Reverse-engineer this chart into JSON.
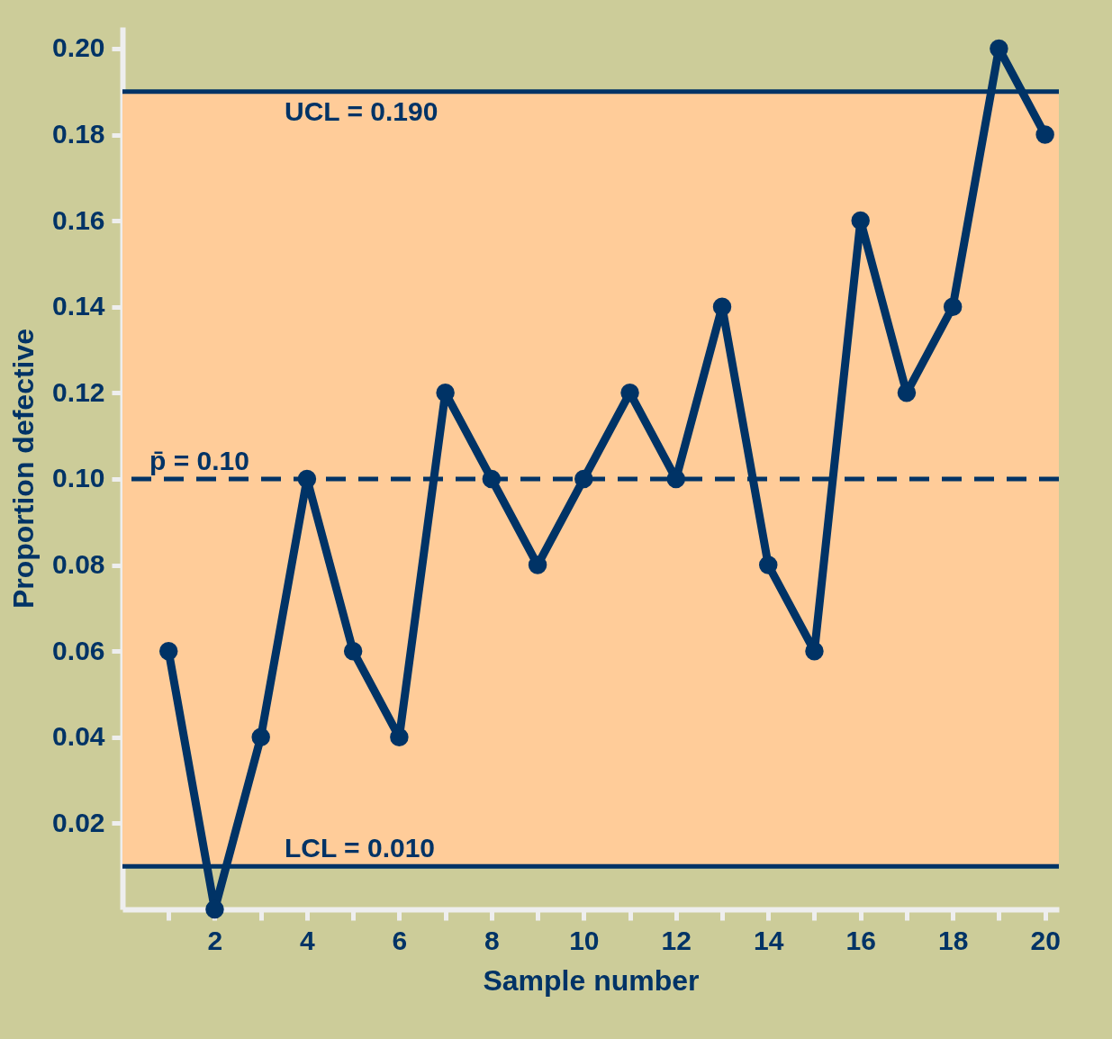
{
  "chart_data": {
    "type": "line",
    "xlabel": "Sample number",
    "ylabel": "Proportion defective",
    "x": [
      1,
      2,
      3,
      4,
      5,
      6,
      7,
      8,
      9,
      10,
      11,
      12,
      13,
      14,
      15,
      16,
      17,
      18,
      19,
      20
    ],
    "series": [
      {
        "color": "#003366",
        "values": [
          0.06,
          0.0,
          0.04,
          0.1,
          0.06,
          0.04,
          0.12,
          0.1,
          0.08,
          0.1,
          0.12,
          0.1,
          0.14,
          0.08,
          0.06,
          0.16,
          0.12,
          0.14,
          0.2,
          0.18
        ]
      }
    ],
    "xlim": [
      0,
      20.3
    ],
    "xticks": [
      {
        "value": 1,
        "label": null
      },
      2,
      {
        "value": 3,
        "label": null
      },
      4,
      {
        "value": 5,
        "label": null
      },
      6,
      {
        "value": 7,
        "label": null
      },
      8,
      {
        "value": 9,
        "label": null
      },
      10,
      {
        "value": 11,
        "label": null
      },
      12,
      {
        "value": 13,
        "label": null
      },
      14,
      {
        "value": 15,
        "label": null
      },
      16,
      {
        "value": 17,
        "label": null
      },
      18,
      {
        "value": 19,
        "label": null
      },
      20
    ],
    "ylim": [
      0,
      0.205
    ],
    "yticks": [
      {
        "value": 0.02,
        "label": "0.02"
      },
      {
        "value": 0.04,
        "label": "0.04"
      },
      {
        "value": 0.06,
        "label": "0.06"
      },
      {
        "value": 0.08,
        "label": "0.08"
      },
      {
        "value": 0.1,
        "label": "0.10"
      },
      {
        "value": 0.12,
        "label": "0.12"
      },
      {
        "value": 0.14,
        "label": "0.14"
      },
      {
        "value": 0.16,
        "label": "0.16"
      },
      {
        "value": 0.18,
        "label": "0.18"
      },
      {
        "value": 0.2,
        "label": "0.20"
      }
    ],
    "ref_lines": [
      {
        "axis": "y",
        "value": 0.19,
        "label": "UCL = 0.190",
        "color": "#003366",
        "line_style": "solid"
      },
      {
        "axis": "y",
        "value": 0.1,
        "label": "p̄ = 0.10",
        "color": "#003366",
        "line_style": "dashed"
      },
      {
        "axis": "y",
        "value": 0.01,
        "label": "LCL = 0.010",
        "color": "#003366",
        "line_style": "solid"
      }
    ],
    "bands": [
      {
        "axis": "y",
        "from": 0.01,
        "to": 0.19,
        "color": "#ffcc99"
      }
    ],
    "marker": "circle",
    "line_style": "solid",
    "grid": false
  }
}
